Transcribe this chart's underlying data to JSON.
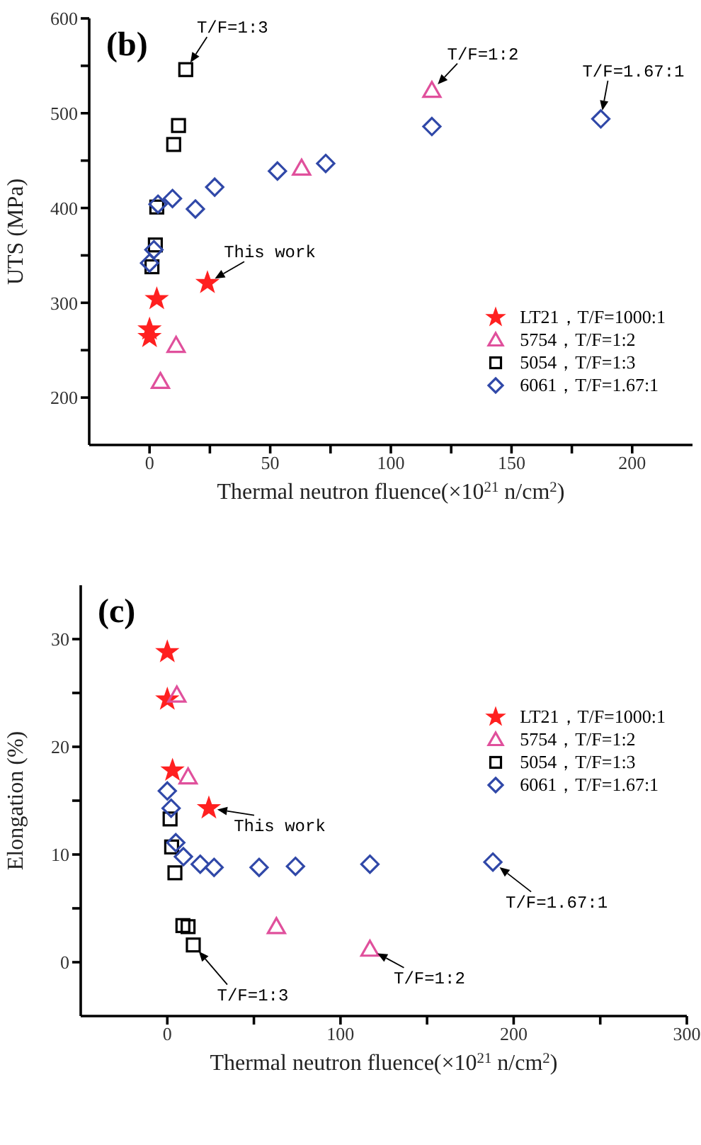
{
  "chart_data": [
    {
      "type": "scatter",
      "title": "(b)",
      "xlabel": "Thermal neutron fluence(×10$^{21}$ n/cm$^{2}$)",
      "ylabel": "UTS (MPa)",
      "xlim": [
        -25,
        225
      ],
      "xticks": [
        0,
        {
          "value": 25,
          "label": null
        },
        50,
        {
          "value": 75,
          "label": null
        },
        100,
        {
          "value": 125,
          "label": null
        },
        150,
        {
          "value": 175,
          "label": null
        },
        200
      ],
      "ylim": [
        150,
        600
      ],
      "yticks": [
        200,
        {
          "value": 250,
          "label": null
        },
        300,
        {
          "value": 350,
          "label": null
        },
        400,
        {
          "value": 450,
          "label": null
        },
        500,
        {
          "value": 550,
          "label": null
        },
        600
      ],
      "grid": false,
      "legend": "right",
      "series": [
        {
          "name": "LT21，T/F=1000:1",
          "color": "#ff2020",
          "marker": "star",
          "x": [
            0,
            0,
            3,
            24
          ],
          "values": [
            272,
            264,
            304,
            321
          ]
        },
        {
          "name": "5754，T/F=1:2",
          "color": "#e0509c",
          "marker": "triangle",
          "x": [
            4.5,
            11,
            63,
            117
          ],
          "values": [
            217,
            255,
            442,
            524
          ]
        },
        {
          "name": "5054，T/F=1:3",
          "color": "#000000",
          "marker": "square",
          "x": [
            15,
            12,
            10,
            3,
            2.4,
            1
          ],
          "values": [
            546,
            487,
            467,
            401,
            361,
            338
          ]
        },
        {
          "name": "6061，T/F=1.67:1",
          "color": "#3048a8",
          "marker": "diamond",
          "x": [
            0,
            1.8,
            3.5,
            9.5,
            19,
            27,
            53,
            73,
            117,
            187
          ],
          "values": [
            342,
            356,
            404,
            410,
            399,
            422,
            439,
            447,
            486,
            494
          ]
        }
      ],
      "annotations": [
        {
          "text": "T/F=1:3",
          "x": 15,
          "y": 546
        },
        {
          "text": "T/F=1:2",
          "x": 117,
          "y": 524
        },
        {
          "text": "T/F=1.67:1",
          "x": 187,
          "y": 494
        },
        {
          "text": "This work",
          "x": 24,
          "y": 321
        }
      ]
    },
    {
      "type": "scatter",
      "title": "(c)",
      "xlabel": "Thermal neutron fluence(×10$^{21}$ n/cm$^{2}$)",
      "ylabel": "Elongation (%)",
      "xlim": [
        -50,
        300
      ],
      "xticks": [
        0,
        {
          "value": 50,
          "label": null
        },
        100,
        {
          "value": 150,
          "label": null
        },
        200,
        {
          "value": 250,
          "label": null
        },
        300
      ],
      "ylim": [
        -5,
        35
      ],
      "yticks": [
        0,
        {
          "value": 5,
          "label": null
        },
        10,
        {
          "value": 15,
          "label": null
        },
        20,
        {
          "value": 25,
          "label": null
        },
        30
      ],
      "grid": false,
      "legend": "top right",
      "series": [
        {
          "name": "LT21，T/F=1000:1",
          "color": "#ff2020",
          "marker": "star",
          "x": [
            0,
            0,
            3,
            24
          ],
          "values": [
            28.8,
            24.4,
            17.8,
            14.3
          ]
        },
        {
          "name": "5754，T/F=1:2",
          "color": "#e0509c",
          "marker": "triangle",
          "x": [
            5.5,
            12,
            63,
            117
          ],
          "values": [
            24.8,
            17.2,
            3.3,
            1.2
          ]
        },
        {
          "name": "5054，T/F=1:3",
          "color": "#000000",
          "marker": "square",
          "x": [
            1.6,
            2.5,
            4.4,
            9,
            12,
            15
          ],
          "values": [
            13.3,
            10.7,
            8.3,
            3.4,
            3.3,
            1.6
          ]
        },
        {
          "name": "6061，T/F=1.67:1",
          "color": "#3048a8",
          "marker": "diamond",
          "x": [
            0,
            2.2,
            4.9,
            9.3,
            19,
            27,
            53,
            74,
            117,
            188
          ],
          "values": [
            15.9,
            14.3,
            11.1,
            9.8,
            9.1,
            8.8,
            8.8,
            8.9,
            9.1,
            9.3
          ]
        }
      ],
      "annotations": [
        {
          "text": "This work",
          "x": 24,
          "y": 14.3
        },
        {
          "text": "T/F=1.67:1",
          "x": 188,
          "y": 9.3
        },
        {
          "text": "T/F=1:2",
          "x": 117,
          "y": 1.2
        },
        {
          "text": "T/F=1:3",
          "x": 15,
          "y": 1.6
        }
      ]
    }
  ]
}
